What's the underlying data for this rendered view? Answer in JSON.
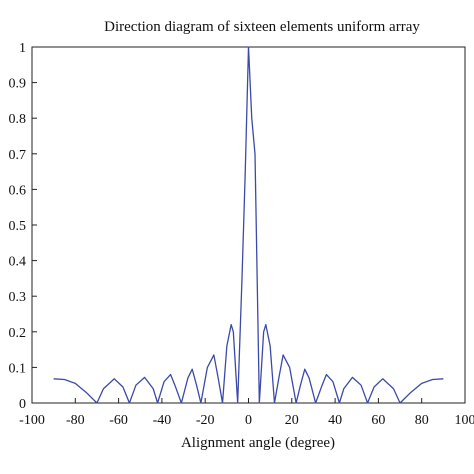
{
  "chart_data": {
    "type": "line",
    "title": "Direction diagram of sixteen elements uniform array",
    "xlabel": "Alignment angle (degree)",
    "ylabel": "",
    "xlim": [
      -100,
      100
    ],
    "ylim": [
      0,
      1
    ],
    "grid": false,
    "x_ticks": [
      -100,
      -80,
      -60,
      -40,
      -20,
      0,
      20,
      40,
      60,
      80,
      100
    ],
    "y_ticks": [
      0,
      0.1,
      0.2,
      0.3,
      0.4,
      0.5,
      0.6,
      0.7,
      0.8,
      0.9,
      1
    ],
    "x_tick_labels": [
      "-100",
      "-80",
      "-60",
      "-40",
      "-20",
      "0",
      "20",
      "40",
      "60",
      "80",
      "100"
    ],
    "y_tick_labels": [
      "0",
      "0.1",
      "0.2",
      "0.3",
      "0.4",
      "0.5",
      "0.6",
      "0.7",
      "0.8",
      "0.9",
      "1"
    ],
    "series": [
      {
        "color": "#3b4aa8",
        "x": [
          -90,
          -85,
          -80,
          -75,
          -70,
          -67,
          -62,
          -58,
          -55,
          -52,
          -48,
          -44,
          -42,
          -39,
          -36,
          -34,
          -31,
          -28,
          -26,
          -24,
          -22,
          -19,
          -16,
          -14,
          -12,
          -10,
          -8,
          -7,
          -5,
          -3,
          -1.5,
          0,
          1.5,
          3,
          5,
          7,
          8,
          10,
          12,
          14,
          16,
          19,
          22,
          24,
          26,
          28,
          31,
          34,
          36,
          39,
          42,
          44,
          48,
          52,
          55,
          58,
          62,
          67,
          70,
          75,
          80,
          85,
          90
        ],
        "y": [
          0.068,
          0.066,
          0.055,
          0.03,
          0.0,
          0.04,
          0.068,
          0.045,
          0.0,
          0.05,
          0.072,
          0.04,
          0.0,
          0.06,
          0.08,
          0.05,
          0.0,
          0.07,
          0.095,
          0.05,
          0.0,
          0.1,
          0.135,
          0.07,
          0.0,
          0.16,
          0.22,
          0.2,
          0.0,
          0.35,
          0.65,
          1.0,
          0.8,
          0.7,
          0.0,
          0.2,
          0.22,
          0.16,
          0.0,
          0.07,
          0.135,
          0.1,
          0.0,
          0.05,
          0.095,
          0.07,
          0.0,
          0.05,
          0.08,
          0.06,
          0.0,
          0.04,
          0.072,
          0.05,
          0.0,
          0.045,
          0.068,
          0.04,
          0.0,
          0.03,
          0.055,
          0.066,
          0.068
        ]
      }
    ]
  }
}
